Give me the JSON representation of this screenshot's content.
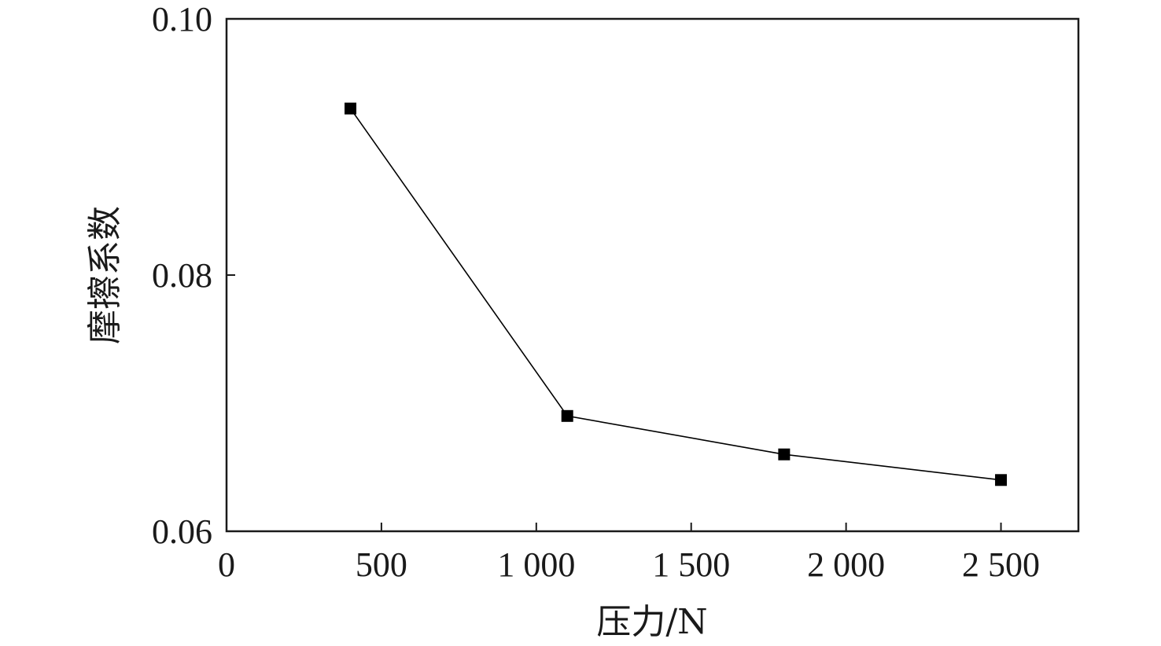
{
  "chart_data": {
    "type": "line",
    "title": "",
    "xlabel": "压力/N",
    "ylabel": "摩擦系数",
    "xlim": [
      0,
      2750
    ],
    "ylim": [
      0.06,
      0.1
    ],
    "x_ticks": [
      {
        "value": 0,
        "label": "0"
      },
      {
        "value": 500,
        "label": "500"
      },
      {
        "value": 1000,
        "label": "1 000"
      },
      {
        "value": 1500,
        "label": "1 500"
      },
      {
        "value": 2000,
        "label": "2 000"
      },
      {
        "value": 2500,
        "label": "2 500"
      }
    ],
    "y_ticks": [
      {
        "value": 0.06,
        "label": "0.06"
      },
      {
        "value": 0.08,
        "label": "0.08"
      },
      {
        "value": 0.1,
        "label": "0.10"
      }
    ],
    "grid": false,
    "series": [
      {
        "x": [
          400,
          1100,
          1800,
          2500
        ],
        "y": [
          0.093,
          0.069,
          0.066,
          0.064
        ],
        "marker": "square",
        "color": "#000000"
      }
    ]
  }
}
